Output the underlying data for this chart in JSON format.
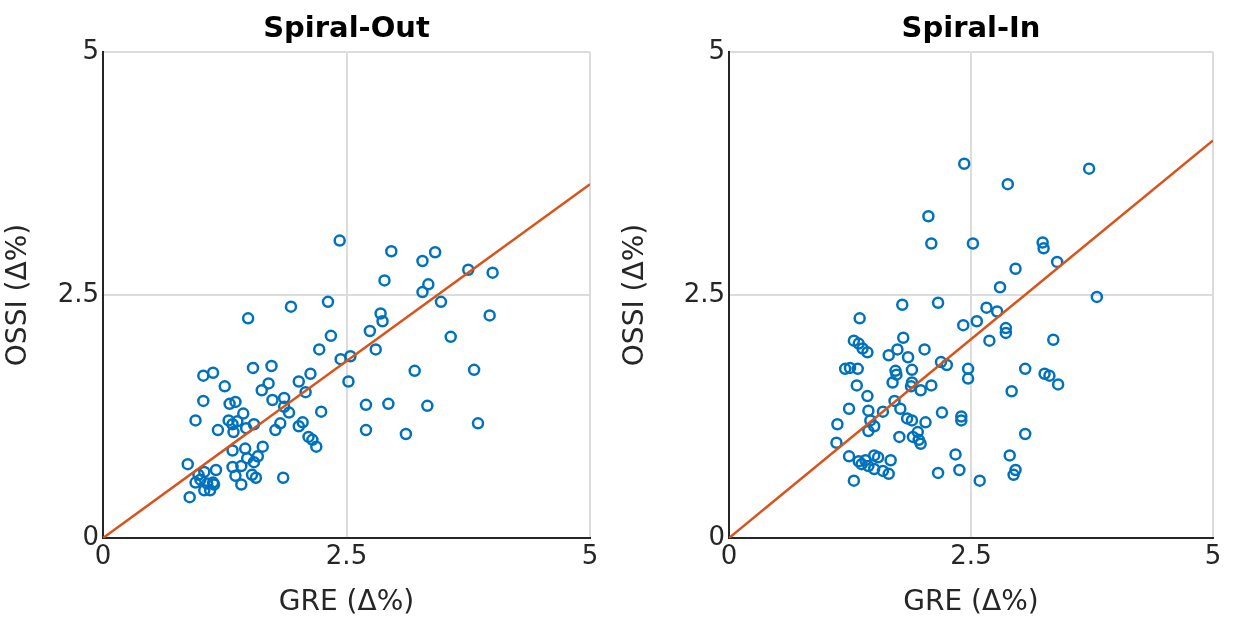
{
  "chart_data": [
    {
      "type": "scatter",
      "title": "Spiral-Out",
      "xlabel": "GRE (Δ%)",
      "ylabel": "OSSI (Δ%)",
      "xlim": [
        0,
        5
      ],
      "ylim": [
        0,
        5
      ],
      "xticks": [
        0,
        2.5,
        5
      ],
      "yticks": [
        0,
        2.5,
        5
      ],
      "grid": true,
      "legend": false,
      "series": [
        {
          "marker": "circle",
          "color": "#0072bd",
          "x": [
            2.43,
            2.96,
            3.41,
            3.28,
            3.75,
            4.0,
            3.34,
            3.28,
            2.89,
            1.49,
            1.93,
            2.31,
            3.47,
            2.85,
            2.87,
            3.97,
            2.74,
            2.34,
            3.57,
            2.22,
            2.8,
            2.54,
            2.44,
            1.54,
            1.73,
            1.03,
            1.13,
            1.25,
            1.7,
            2.01,
            2.13,
            2.52,
            3.2,
            3.81,
            1.63,
            2.08,
            1.74,
            1.86,
            1.86,
            1.03,
            1.36,
            1.3,
            1.44,
            1.91,
            2.24,
            2.7,
            2.93,
            3.33,
            0.95,
            1.29,
            1.33,
            1.38,
            1.47,
            1.55,
            1.18,
            1.34,
            1.77,
            1.82,
            2.01,
            2.05,
            2.7,
            3.11,
            3.85,
            2.11,
            2.15,
            2.19,
            1.64,
            1.46,
            1.33,
            0.87,
            1.48,
            1.55,
            1.59,
            1.42,
            1.33,
            1.04,
            1.16,
            0.98,
            1.36,
            1.53,
            1.57,
            1.85,
            1.0,
            1.07,
            1.13,
            0.95,
            1.42,
            1.1,
            1.04,
            0.89,
            1.14
          ],
          "values": [
            3.06,
            2.95,
            2.94,
            2.85,
            2.76,
            2.73,
            2.61,
            2.53,
            2.65,
            2.26,
            2.38,
            2.43,
            2.43,
            2.31,
            2.23,
            2.29,
            2.13,
            2.08,
            2.07,
            1.94,
            1.94,
            1.87,
            1.84,
            1.75,
            1.77,
            1.67,
            1.7,
            1.56,
            1.59,
            1.61,
            1.69,
            1.61,
            1.72,
            1.73,
            1.52,
            1.5,
            1.42,
            1.44,
            1.35,
            1.41,
            1.4,
            1.38,
            1.28,
            1.29,
            1.3,
            1.37,
            1.38,
            1.36,
            1.21,
            1.21,
            1.17,
            1.2,
            1.13,
            1.17,
            1.11,
            1.09,
            1.11,
            1.18,
            1.15,
            1.19,
            1.11,
            1.07,
            1.18,
            1.04,
            1.01,
            0.94,
            0.94,
            0.92,
            0.9,
            0.76,
            0.82,
            0.78,
            0.84,
            0.74,
            0.73,
            0.68,
            0.7,
            0.65,
            0.64,
            0.65,
            0.62,
            0.62,
            0.6,
            0.56,
            0.57,
            0.57,
            0.55,
            0.49,
            0.49,
            0.42,
            0.55
          ]
        },
        {
          "type": "line",
          "marker": "none",
          "color": "#d95319",
          "x": [
            0,
            5
          ],
          "values": [
            0,
            3.64
          ]
        }
      ]
    },
    {
      "type": "scatter",
      "title": "Spiral-In",
      "xlabel": "GRE (Δ%)",
      "ylabel": "OSSI (Δ%)",
      "xlim": [
        0,
        5
      ],
      "ylim": [
        0,
        5
      ],
      "xticks": [
        0,
        2.5,
        5
      ],
      "yticks": [
        0,
        2.5,
        5
      ],
      "grid": true,
      "legend": false,
      "series": [
        {
          "marker": "circle",
          "color": "#0072bd",
          "x": [
            2.43,
            3.72,
            2.88,
            2.06,
            2.09,
            2.52,
            3.24,
            3.25,
            3.39,
            2.96,
            3.8,
            2.8,
            2.66,
            2.77,
            1.35,
            1.79,
            2.16,
            2.56,
            2.42,
            2.86,
            2.86,
            2.69,
            3.35,
            1.29,
            1.34,
            1.38,
            1.43,
            1.8,
            1.74,
            2.02,
            1.65,
            1.85,
            2.19,
            2.25,
            1.2,
            1.25,
            1.33,
            1.89,
            1.72,
            1.73,
            2.47,
            2.47,
            3.06,
            3.26,
            3.31,
            3.4,
            1.32,
            1.69,
            1.89,
            2.09,
            1.98,
            1.88,
            1.43,
            1.71,
            2.92,
            1.24,
            1.59,
            1.44,
            1.77,
            2.2,
            1.46,
            1.89,
            2.03,
            1.84,
            2.4,
            2.4,
            1.5,
            1.44,
            1.12,
            1.95,
            1.9,
            1.76,
            3.06,
            1.96,
            1.98,
            1.11,
            1.24,
            1.5,
            1.54,
            2.9,
            2.34,
            1.34,
            1.41,
            1.67,
            1.37,
            1.44,
            1.5,
            1.59,
            1.65,
            2.38,
            2.16,
            2.96,
            2.94,
            1.29,
            2.59
          ],
          "values": [
            3.85,
            3.8,
            3.64,
            3.31,
            3.03,
            3.03,
            3.04,
            2.98,
            2.84,
            2.77,
            2.48,
            2.58,
            2.37,
            2.33,
            2.26,
            2.4,
            2.42,
            2.23,
            2.19,
            2.16,
            2.11,
            2.03,
            2.04,
            2.03,
            2.0,
            1.95,
            1.91,
            2.06,
            1.94,
            1.94,
            1.88,
            1.86,
            1.81,
            1.78,
            1.74,
            1.75,
            1.74,
            1.73,
            1.72,
            1.68,
            1.74,
            1.64,
            1.74,
            1.69,
            1.67,
            1.58,
            1.57,
            1.6,
            1.6,
            1.57,
            1.52,
            1.56,
            1.46,
            1.41,
            1.51,
            1.33,
            1.3,
            1.31,
            1.33,
            1.29,
            1.21,
            1.21,
            1.19,
            1.23,
            1.25,
            1.21,
            1.15,
            1.1,
            1.17,
            1.09,
            1.04,
            1.04,
            1.07,
            1.01,
            0.97,
            0.98,
            0.84,
            0.85,
            0.83,
            0.85,
            0.86,
            0.79,
            0.8,
            0.8,
            0.76,
            0.74,
            0.71,
            0.69,
            0.66,
            0.7,
            0.67,
            0.7,
            0.65,
            0.59,
            0.59
          ]
        },
        {
          "type": "line",
          "marker": "none",
          "color": "#d95319",
          "x": [
            0,
            5
          ],
          "values": [
            0,
            4.09
          ]
        }
      ]
    }
  ]
}
